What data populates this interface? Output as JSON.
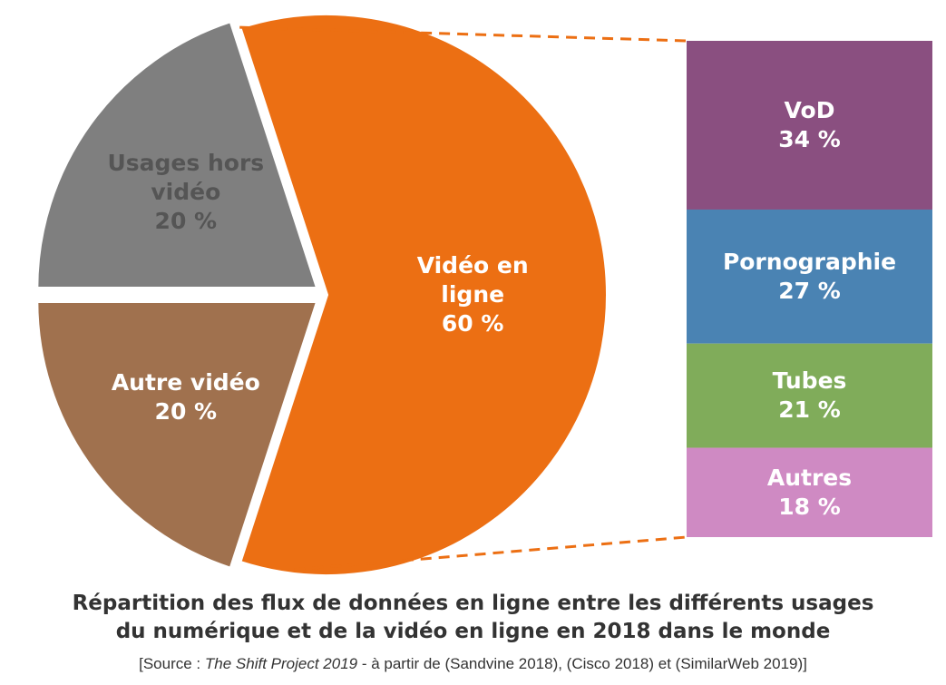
{
  "chart_data": {
    "type": "pie",
    "categories": [
      "Vidéo en ligne",
      "Autre vidéo",
      "Usages hors vidéo"
    ],
    "values": [
      60,
      20,
      20
    ],
    "value_labels": [
      "60 %",
      "20 %",
      "20 %"
    ],
    "colors": [
      "#ec6f13",
      "#a0714e",
      "#7f7f7f"
    ],
    "label_colors": [
      "#ffffff",
      "#ffffff",
      "#555555"
    ],
    "breakdown": {
      "type": "bar",
      "categories": [
        "VoD",
        "Pornographie",
        "Tubes",
        "Autres"
      ],
      "values": [
        34,
        27,
        21,
        18
      ],
      "value_labels": [
        "34 %",
        "27 %",
        "21 %",
        "18 %"
      ],
      "colors": [
        "#8a4f80",
        "#4a83b3",
        "#80ac5a",
        "#cf8ac3"
      ]
    },
    "title": [
      "Répartition des flux de données en ligne entre les différents usages",
      "du numérique et de la vidéo en ligne en 2018 dans le monde"
    ],
    "source": [
      "[Source : ",
      "The Shift Project 2019",
      " - à partir de (Sandvine 2018), (Cisco 2018) et (SimilarWeb 2019)]"
    ]
  }
}
